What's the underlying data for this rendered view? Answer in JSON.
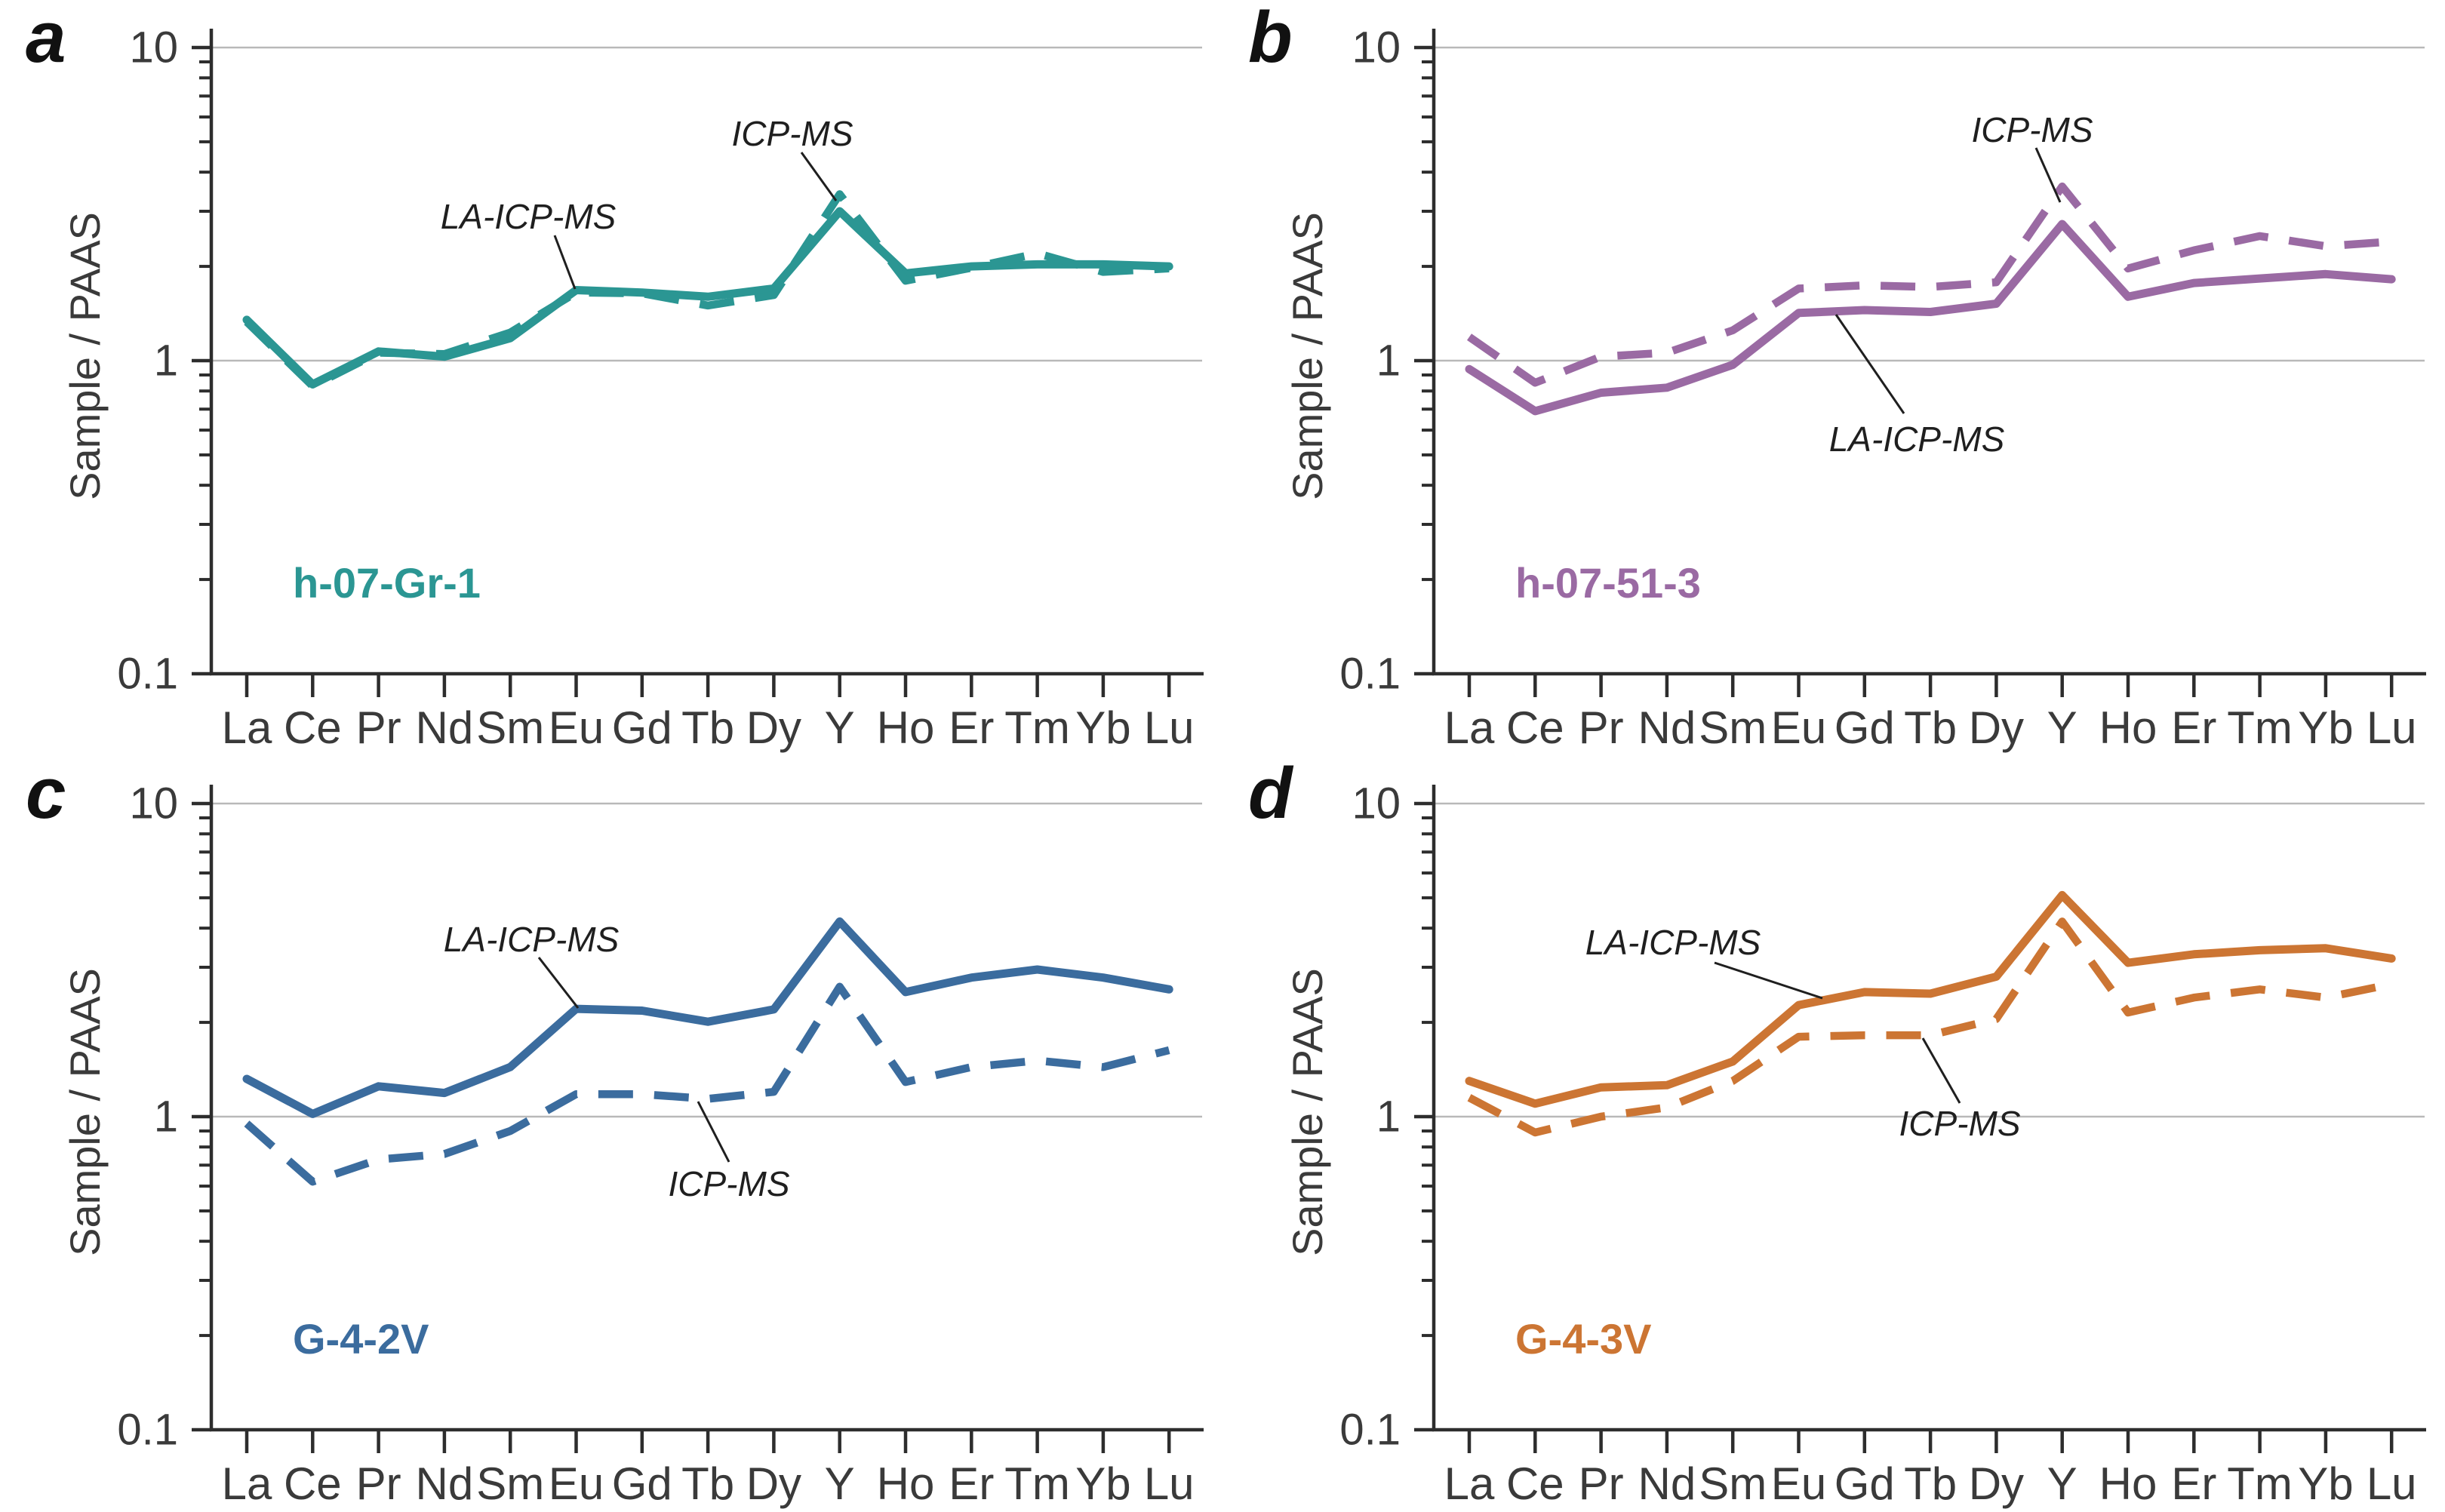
{
  "figure": {
    "background": "#ffffff",
    "y_axis_label": "Sample / PAAS",
    "y_tick_labels": [
      "10",
      "1",
      "0.1"
    ],
    "x_categories": [
      "La",
      "Ce",
      "Pr",
      "Nd",
      "Sm",
      "Eu",
      "Gd",
      "Tb",
      "Dy",
      "Y",
      "Ho",
      "Er",
      "Tm",
      "Yb",
      "Lu"
    ],
    "grid_color": "#b9b9b9",
    "axis_color": "#2d2d2d",
    "text_color": "#3a3a3a",
    "annotation_color": "#1f1f1f"
  },
  "chart_data": [
    {
      "type": "line",
      "panel_letter": "a",
      "title": "h-07-Gr-1",
      "color": "#2b9693",
      "ylabel": "Sample / PAAS",
      "y_scale": "log",
      "ylim": [
        0.1,
        10
      ],
      "grid": true,
      "categories": [
        "La",
        "Ce",
        "Pr",
        "Nd",
        "Sm",
        "Eu",
        "Gd",
        "Tb",
        "Dy",
        "Y",
        "Ho",
        "Er",
        "Tm",
        "Yb",
        "Lu"
      ],
      "series": [
        {
          "name": "LA-ICP-MS",
          "style": "solid",
          "values": [
            1.35,
            0.84,
            1.07,
            1.03,
            1.18,
            1.68,
            1.65,
            1.6,
            1.7,
            3.0,
            1.9,
            2.0,
            2.03,
            2.03,
            2.0
          ]
        },
        {
          "name": "ICP-MS",
          "style": "dashed",
          "values": [
            1.33,
            0.83,
            1.06,
            1.05,
            1.23,
            1.65,
            1.64,
            1.5,
            1.62,
            3.4,
            1.8,
            1.98,
            2.2,
            1.92,
            1.97
          ]
        }
      ],
      "annotations": [
        {
          "label": "LA-ICP-MS",
          "text_x": 700,
          "text_y": 287,
          "leader": [
            735,
            312,
            762,
            383
          ]
        },
        {
          "label": "ICP-MS",
          "text_x": 1050,
          "text_y": 177,
          "leader": [
            1062,
            202,
            1108,
            266
          ]
        }
      ]
    },
    {
      "type": "line",
      "panel_letter": "b",
      "title": "h-07-51-3",
      "color": "#9a6aa3",
      "ylabel": "Sample / PAAS",
      "y_scale": "log",
      "ylim": [
        0.1,
        10
      ],
      "grid": true,
      "categories": [
        "La",
        "Ce",
        "Pr",
        "Nd",
        "Sm",
        "Eu",
        "Gd",
        "Tb",
        "Dy",
        "Y",
        "Ho",
        "Er",
        "Tm",
        "Yb",
        "Lu"
      ],
      "series": [
        {
          "name": "LA-ICP-MS",
          "style": "solid",
          "values": [
            0.94,
            0.69,
            0.79,
            0.82,
            0.97,
            1.42,
            1.45,
            1.43,
            1.52,
            2.73,
            1.6,
            1.77,
            1.83,
            1.89,
            1.82
          ]
        },
        {
          "name": "ICP-MS",
          "style": "dashed",
          "values": [
            1.19,
            0.85,
            1.03,
            1.06,
            1.25,
            1.7,
            1.74,
            1.72,
            1.78,
            3.6,
            1.97,
            2.25,
            2.5,
            2.32,
            2.4
          ]
        }
      ],
      "annotations": [
        {
          "label": "ICP-MS",
          "text_x": 1073,
          "text_y": 172,
          "leader": [
            1078,
            196,
            1110,
            268
          ]
        },
        {
          "label": "LA-ICP-MS",
          "text_x": 920,
          "text_y": 582,
          "leader": [
            813,
            417,
            903,
            548
          ]
        }
      ]
    },
    {
      "type": "line",
      "panel_letter": "c",
      "title": "G-4-2V",
      "color": "#3b6c9e",
      "ylabel": "Sample / PAAS",
      "y_scale": "log",
      "ylim": [
        0.1,
        10
      ],
      "grid": true,
      "categories": [
        "La",
        "Ce",
        "Pr",
        "Nd",
        "Sm",
        "Eu",
        "Gd",
        "Tb",
        "Dy",
        "Y",
        "Ho",
        "Er",
        "Tm",
        "Yb",
        "Lu"
      ],
      "series": [
        {
          "name": "LA-ICP-MS",
          "style": "solid",
          "values": [
            1.32,
            1.02,
            1.25,
            1.19,
            1.44,
            2.21,
            2.18,
            2.01,
            2.2,
            4.2,
            2.5,
            2.78,
            2.95,
            2.78,
            2.55
          ]
        },
        {
          "name": "ICP-MS",
          "style": "dashed",
          "values": [
            0.95,
            0.62,
            0.73,
            0.76,
            0.9,
            1.18,
            1.18,
            1.14,
            1.2,
            2.6,
            1.29,
            1.44,
            1.51,
            1.44,
            1.63
          ]
        }
      ],
      "annotations": [
        {
          "label": "LA-ICP-MS",
          "text_x": 704,
          "text_y": 243,
          "leader": [
            714,
            267,
            766,
            334
          ]
        },
        {
          "label": "ICP-MS",
          "text_x": 966,
          "text_y": 567,
          "leader": [
            925,
            458,
            966,
            538
          ]
        }
      ]
    },
    {
      "type": "line",
      "panel_letter": "d",
      "title": "G-4-3V",
      "color": "#cc7533",
      "ylabel": "Sample / PAAS",
      "y_scale": "log",
      "ylim": [
        0.1,
        10
      ],
      "grid": true,
      "categories": [
        "La",
        "Ce",
        "Pr",
        "Nd",
        "Sm",
        "Eu",
        "Gd",
        "Tb",
        "Dy",
        "Y",
        "Ho",
        "Er",
        "Tm",
        "Yb",
        "Lu"
      ],
      "series": [
        {
          "name": "LA-ICP-MS",
          "style": "solid",
          "values": [
            1.3,
            1.1,
            1.24,
            1.26,
            1.5,
            2.27,
            2.5,
            2.47,
            2.8,
            5.1,
            3.1,
            3.3,
            3.4,
            3.45,
            3.2
          ]
        },
        {
          "name": "ICP-MS",
          "style": "dashed",
          "values": [
            1.15,
            0.89,
            1.0,
            1.07,
            1.3,
            1.8,
            1.82,
            1.82,
            2.05,
            4.2,
            2.15,
            2.4,
            2.55,
            2.4,
            2.65
          ]
        }
      ],
      "annotations": [
        {
          "label": "LA-ICP-MS",
          "text_x": 597,
          "text_y": 247,
          "leader": [
            652,
            274,
            795,
            321
          ]
        },
        {
          "label": "ICP-MS",
          "text_x": 977,
          "text_y": 487,
          "leader": [
            928,
            374,
            977,
            460
          ]
        }
      ]
    }
  ]
}
